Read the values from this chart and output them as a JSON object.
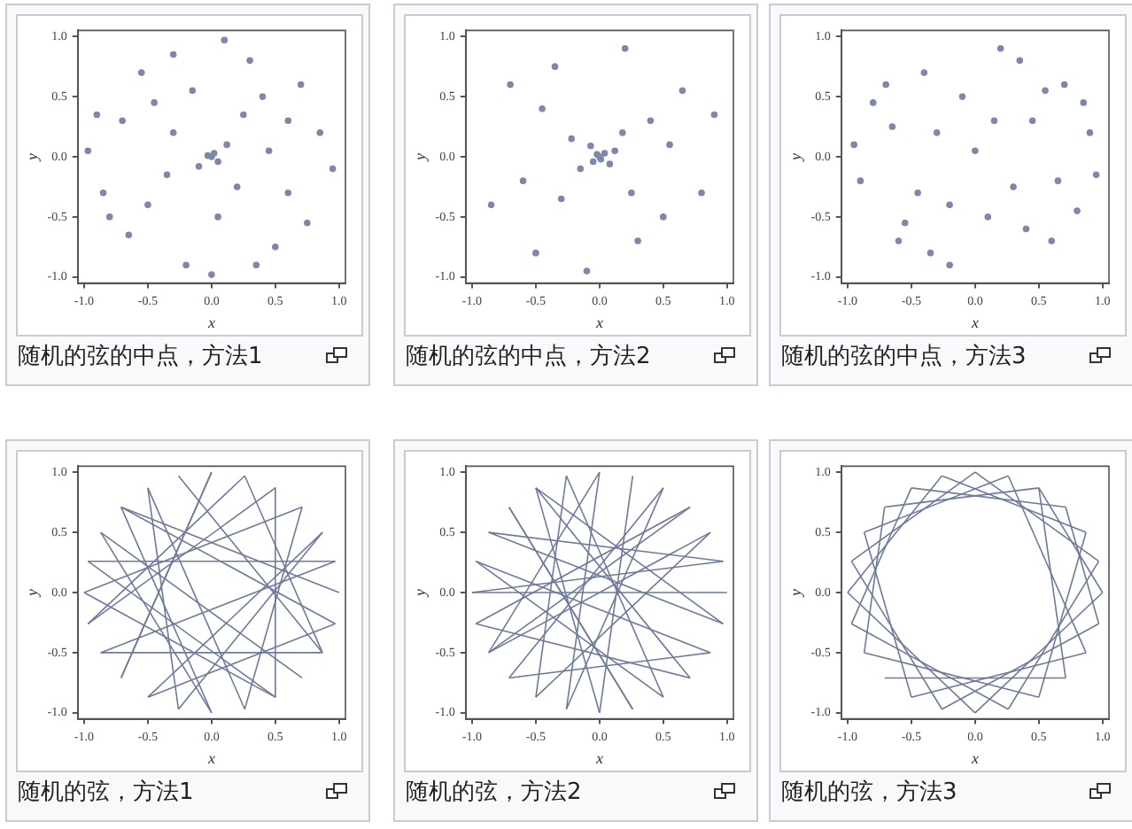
{
  "chart_data": [
    {
      "type": "scatter",
      "title": "随机的弦的中点，方法1",
      "xlabel": "x",
      "ylabel": "y",
      "color": "#7d88a8",
      "marker": "circle",
      "grid": false,
      "legend": false,
      "xlim": [
        -1.05,
        1.05
      ],
      "ylim": [
        -1.05,
        1.05
      ],
      "xticks": [
        {
          "value": -1,
          "label": "-1.0"
        },
        {
          "value": -0.5,
          "label": "-0.5"
        },
        {
          "value": 0,
          "label": "0.0"
        },
        {
          "value": 0.5,
          "label": "0.5"
        },
        {
          "value": 1,
          "label": "1.0"
        }
      ],
      "yticks": [
        {
          "value": -1,
          "label": "-1.0"
        },
        {
          "value": -0.5,
          "label": "-0.5"
        },
        {
          "value": 0,
          "label": "0.0"
        },
        {
          "value": 0.5,
          "label": "0.5"
        },
        {
          "value": 1,
          "label": "1.0"
        }
      ],
      "x": [
        0,
        0.02,
        -0.03,
        0.05,
        -0.1,
        0.12,
        0.2,
        -0.3,
        0.4,
        -0.5,
        0.6,
        -0.7,
        0.3,
        -0.2,
        0.85,
        -0.85,
        0.5,
        -0.55,
        0.7,
        -0.65,
        0.95,
        -0.97,
        0.1,
        0,
        0.25,
        -0.35,
        0.45,
        -0.15,
        0.05,
        -0.45,
        0.75,
        -0.8,
        0.6,
        -0.3,
        0.35,
        -0.9
      ],
      "values": [
        0,
        0.03,
        0.01,
        -0.04,
        -0.08,
        0.1,
        -0.25,
        0.2,
        0.5,
        -0.4,
        -0.3,
        0.3,
        0.8,
        -0.9,
        0.2,
        -0.3,
        -0.75,
        0.7,
        0.6,
        -0.65,
        -0.1,
        0.05,
        0.97,
        -0.98,
        0.35,
        -0.15,
        0.05,
        0.55,
        -0.5,
        0.45,
        -0.55,
        -0.5,
        0.3,
        0.85,
        -0.9,
        0.35
      ]
    },
    {
      "type": "scatter",
      "title": "随机的弦的中点，方法2",
      "xlabel": "x",
      "ylabel": "y",
      "color": "#7d88a8",
      "marker": "circle",
      "grid": false,
      "legend": false,
      "xlim": [
        -1.05,
        1.05
      ],
      "ylim": [
        -1.05,
        1.05
      ],
      "xticks": [
        {
          "value": -1,
          "label": "-1.0"
        },
        {
          "value": -0.5,
          "label": "-0.5"
        },
        {
          "value": 0,
          "label": "0.0"
        },
        {
          "value": 0.5,
          "label": "0.5"
        },
        {
          "value": 1,
          "label": "1.0"
        }
      ],
      "yticks": [
        {
          "value": -1,
          "label": "-1.0"
        },
        {
          "value": -0.5,
          "label": "-0.5"
        },
        {
          "value": 0,
          "label": "0.0"
        },
        {
          "value": 0.5,
          "label": "0.5"
        },
        {
          "value": 1,
          "label": "1.0"
        }
      ],
      "x": [
        0,
        0.01,
        -0.02,
        0.04,
        -0.05,
        0.08,
        -0.07,
        0.12,
        -0.15,
        0.18,
        -0.22,
        0.25,
        -0.3,
        0.4,
        -0.45,
        0.5,
        -0.6,
        0.65,
        -0.7,
        0.8,
        -0.85,
        0.2,
        -0.1,
        0.9,
        -0.5,
        0.55,
        -0.35,
        0.3
      ],
      "values": [
        0,
        -0.02,
        0.02,
        0.03,
        -0.04,
        -0.06,
        0.09,
        0.05,
        -0.1,
        0.2,
        0.15,
        -0.3,
        -0.35,
        0.3,
        0.4,
        -0.5,
        -0.2,
        0.55,
        0.6,
        -0.3,
        -0.4,
        0.9,
        -0.95,
        0.35,
        -0.8,
        0.1,
        0.75,
        -0.7
      ]
    },
    {
      "type": "scatter",
      "title": "随机的弦的中点，方法3",
      "xlabel": "x",
      "ylabel": "y",
      "color": "#7d88a8",
      "marker": "circle",
      "grid": false,
      "legend": false,
      "xlim": [
        -1.05,
        1.05
      ],
      "ylim": [
        -1.05,
        1.05
      ],
      "xticks": [
        {
          "value": -1,
          "label": "-1.0"
        },
        {
          "value": -0.5,
          "label": "-0.5"
        },
        {
          "value": 0,
          "label": "0.0"
        },
        {
          "value": 0.5,
          "label": "0.5"
        },
        {
          "value": 1,
          "label": "1.0"
        }
      ],
      "yticks": [
        {
          "value": -1,
          "label": "-1.0"
        },
        {
          "value": -0.5,
          "label": "-0.5"
        },
        {
          "value": 0,
          "label": "0.0"
        },
        {
          "value": 0.5,
          "label": "0.5"
        },
        {
          "value": 1,
          "label": "1.0"
        }
      ],
      "x": [
        0.7,
        -0.7,
        0.6,
        -0.6,
        0.9,
        -0.9,
        0.2,
        -0.2,
        0.45,
        -0.45,
        0.1,
        -0.1,
        0.8,
        -0.8,
        0.35,
        -0.35,
        0,
        0.3,
        -0.3,
        0.95,
        -0.95,
        0.55,
        -0.55,
        0.65,
        -0.65,
        0.15,
        -0.2,
        0.4,
        -0.4,
        0.85
      ],
      "values": [
        0.6,
        0.6,
        -0.7,
        -0.7,
        0.2,
        -0.2,
        0.9,
        -0.9,
        0.3,
        -0.3,
        -0.5,
        0.5,
        -0.45,
        0.45,
        0.8,
        -0.8,
        0.05,
        -0.25,
        0.2,
        -0.15,
        0.1,
        0.55,
        -0.55,
        -0.2,
        0.25,
        0.3,
        -0.4,
        -0.6,
        0.7,
        0.45
      ]
    },
    {
      "type": "line",
      "title": "随机的弦，方法1",
      "xlabel": "x",
      "ylabel": "y",
      "color": "#6d7a99",
      "marker": "none",
      "line_style": "solid",
      "grid": false,
      "legend": false,
      "xlim": [
        -1.05,
        1.05
      ],
      "ylim": [
        -1.05,
        1.05
      ],
      "xticks": [
        {
          "value": -1,
          "label": "-1.0"
        },
        {
          "value": -0.5,
          "label": "-0.5"
        },
        {
          "value": 0,
          "label": "0.0"
        },
        {
          "value": 0.5,
          "label": "0.5"
        },
        {
          "value": 1,
          "label": "1.0"
        }
      ],
      "yticks": [
        {
          "value": -1,
          "label": "-1.0"
        },
        {
          "value": -0.5,
          "label": "-0.5"
        },
        {
          "value": 0,
          "label": "0.0"
        },
        {
          "value": 0.5,
          "label": "0.5"
        },
        {
          "value": 1,
          "label": "1.0"
        }
      ],
      "series": [
        {
          "x": [
            1,
            -0.71
          ],
          "values": [
            0,
            0.71
          ]
        },
        {
          "x": [
            0.97,
            -0.87
          ],
          "values": [
            0.26,
            -0.5
          ]
        },
        {
          "x": [
            0.87,
            -0.26
          ],
          "values": [
            0.5,
            -0.97
          ]
        },
        {
          "x": [
            0.71,
            -1
          ],
          "values": [
            0.71,
            0
          ]
        },
        {
          "x": [
            0.5,
            0.5
          ],
          "values": [
            0.87,
            -0.87
          ]
        },
        {
          "x": [
            0.26,
            -0.97
          ],
          "values": [
            0.97,
            -0.26
          ]
        },
        {
          "x": [
            0,
            -0.71
          ],
          "values": [
            1,
            -0.71
          ]
        },
        {
          "x": [
            -0.26,
            0.87
          ],
          "values": [
            0.97,
            -0.5
          ]
        },
        {
          "x": [
            -0.5,
            0.26
          ],
          "values": [
            0.87,
            -0.97
          ]
        },
        {
          "x": [
            -0.71,
            0.97
          ],
          "values": [
            0.71,
            -0.26
          ]
        },
        {
          "x": [
            -0.87,
            0
          ],
          "values": [
            0.5,
            -1
          ]
        },
        {
          "x": [
            -0.97,
            0.97
          ],
          "values": [
            0.26,
            0.26
          ]
        },
        {
          "x": [
            -1,
            0.5
          ],
          "values": [
            0,
            -0.87
          ]
        },
        {
          "x": [
            -0.97,
            0.5
          ],
          "values": [
            -0.26,
            0.87
          ]
        },
        {
          "x": [
            -0.87,
            0.87
          ],
          "values": [
            -0.5,
            -0.5
          ]
        },
        {
          "x": [
            -0.71,
            0
          ],
          "values": [
            -0.71,
            1
          ]
        },
        {
          "x": [
            -0.5,
            0.87
          ],
          "values": [
            -0.87,
            0.5
          ]
        },
        {
          "x": [
            -0.26,
            -0.5
          ],
          "values": [
            -0.97,
            0.87
          ]
        },
        {
          "x": [
            0,
            -0.71
          ],
          "values": [
            -1,
            0.71
          ]
        },
        {
          "x": [
            0.26,
            0.71
          ],
          "values": [
            -0.97,
            0.71
          ]
        },
        {
          "x": [
            0.5,
            -0.97
          ],
          "values": [
            -0.87,
            0.26
          ]
        },
        {
          "x": [
            0.71,
            -0.87
          ],
          "values": [
            -0.71,
            0.5
          ]
        },
        {
          "x": [
            0.87,
            0.26
          ],
          "values": [
            -0.5,
            0.97
          ]
        },
        {
          "x": [
            0.97,
            -0.5
          ],
          "values": [
            -0.26,
            -0.87
          ]
        }
      ]
    },
    {
      "type": "line",
      "title": "随机的弦，方法2",
      "xlabel": "x",
      "ylabel": "y",
      "color": "#6d7a99",
      "marker": "none",
      "line_style": "solid",
      "grid": false,
      "legend": false,
      "xlim": [
        -1.05,
        1.05
      ],
      "ylim": [
        -1.05,
        1.05
      ],
      "xticks": [
        {
          "value": -1,
          "label": "-1.0"
        },
        {
          "value": -0.5,
          "label": "-0.5"
        },
        {
          "value": 0,
          "label": "0.0"
        },
        {
          "value": 0.5,
          "label": "0.5"
        },
        {
          "value": 1,
          "label": "1.0"
        }
      ],
      "yticks": [
        {
          "value": -1,
          "label": "-1.0"
        },
        {
          "value": -0.5,
          "label": "-0.5"
        },
        {
          "value": 0,
          "label": "0.0"
        },
        {
          "value": 0.5,
          "label": "0.5"
        },
        {
          "value": 1,
          "label": "1.0"
        }
      ],
      "series": [
        {
          "x": [
            1,
            -1
          ],
          "values": [
            0,
            0
          ]
        },
        {
          "x": [
            0.97,
            -0.87
          ],
          "values": [
            0.26,
            0.5
          ]
        },
        {
          "x": [
            0.87,
            -0.5
          ],
          "values": [
            0.5,
            -0.87
          ]
        },
        {
          "x": [
            0.71,
            -0.87
          ],
          "values": [
            0.71,
            -0.5
          ]
        },
        {
          "x": [
            0.5,
            -0.26
          ],
          "values": [
            0.87,
            -0.97
          ]
        },
        {
          "x": [
            0.26,
            0
          ],
          "values": [
            0.97,
            -1
          ]
        },
        {
          "x": [
            0,
            -0.87
          ],
          "values": [
            1,
            -0.5
          ]
        },
        {
          "x": [
            -0.26,
            0.5
          ],
          "values": [
            0.97,
            -0.87
          ]
        },
        {
          "x": [
            -0.5,
            0.71
          ],
          "values": [
            0.87,
            -0.71
          ]
        },
        {
          "x": [
            -0.71,
            0.26
          ],
          "values": [
            0.71,
            -0.97
          ]
        },
        {
          "x": [
            -0.87,
            0.97
          ],
          "values": [
            0.5,
            -0.26
          ]
        },
        {
          "x": [
            -0.97,
            0.87
          ],
          "values": [
            0.26,
            -0.5
          ]
        },
        {
          "x": [
            -1,
            0.97
          ],
          "values": [
            0,
            0.26
          ]
        },
        {
          "x": [
            -0.97,
            0.71
          ],
          "values": [
            -0.26,
            0.71
          ]
        },
        {
          "x": [
            -0.87,
            0.87
          ],
          "values": [
            -0.5,
            0.5
          ]
        },
        {
          "x": [
            -0.71,
            0.5
          ],
          "values": [
            -0.71,
            0.87
          ]
        },
        {
          "x": [
            -0.5,
            -0.26
          ],
          "values": [
            -0.87,
            0.97
          ]
        },
        {
          "x": [
            -0.26,
            0
          ],
          "values": [
            -0.97,
            1
          ]
        },
        {
          "x": [
            0,
            -0.5
          ],
          "values": [
            -1,
            0.87
          ]
        },
        {
          "x": [
            0.26,
            -0.71
          ],
          "values": [
            -0.97,
            0.71
          ]
        },
        {
          "x": [
            0.5,
            -0.97
          ],
          "values": [
            -0.87,
            0.26
          ]
        },
        {
          "x": [
            0.71,
            -0.97
          ],
          "values": [
            -0.71,
            -0.26
          ]
        },
        {
          "x": [
            0.87,
            -0.71
          ],
          "values": [
            -0.5,
            -0.71
          ]
        },
        {
          "x": [
            0.97,
            -0.5
          ],
          "values": [
            -0.26,
            0.87
          ]
        }
      ]
    },
    {
      "type": "line",
      "title": "随机的弦，方法3",
      "xlabel": "x",
      "ylabel": "y",
      "color": "#6d7a99",
      "marker": "none",
      "line_style": "solid",
      "grid": false,
      "legend": false,
      "xlim": [
        -1.05,
        1.05
      ],
      "ylim": [
        -1.05,
        1.05
      ],
      "xticks": [
        {
          "value": -1,
          "label": "-1.0"
        },
        {
          "value": -0.5,
          "label": "-0.5"
        },
        {
          "value": 0,
          "label": "0.0"
        },
        {
          "value": 0.5,
          "label": "0.5"
        },
        {
          "value": 1,
          "label": "1.0"
        }
      ],
      "yticks": [
        {
          "value": -1,
          "label": "-1.0"
        },
        {
          "value": -0.5,
          "label": "-0.5"
        },
        {
          "value": 0,
          "label": "0.0"
        },
        {
          "value": 0.5,
          "label": "0.5"
        },
        {
          "value": 1,
          "label": "1.0"
        }
      ],
      "series": [
        {
          "x": [
            1,
            0.5
          ],
          "values": [
            0,
            0.87
          ]
        },
        {
          "x": [
            0.97,
            0
          ],
          "values": [
            0.26,
            1
          ]
        },
        {
          "x": [
            0.87,
            -0.26
          ],
          "values": [
            0.5,
            0.97
          ]
        },
        {
          "x": [
            0.71,
            -0.5
          ],
          "values": [
            0.71,
            0.87
          ]
        },
        {
          "x": [
            0.5,
            -0.71
          ],
          "values": [
            0.87,
            0.71
          ]
        },
        {
          "x": [
            0.26,
            -0.87
          ],
          "values": [
            0.97,
            0.5
          ]
        },
        {
          "x": [
            0,
            -0.97
          ],
          "values": [
            1,
            0.26
          ]
        },
        {
          "x": [
            -0.26,
            -1
          ],
          "values": [
            0.97,
            0
          ]
        },
        {
          "x": [
            -0.5,
            -0.97
          ],
          "values": [
            0.87,
            -0.26
          ]
        },
        {
          "x": [
            -0.71,
            -0.87
          ],
          "values": [
            0.71,
            -0.5
          ]
        },
        {
          "x": [
            -0.87,
            -0.5
          ],
          "values": [
            0.5,
            -0.87
          ]
        },
        {
          "x": [
            -0.97,
            -0.26
          ],
          "values": [
            0.26,
            -0.97
          ]
        },
        {
          "x": [
            -1,
            0
          ],
          "values": [
            0,
            -1
          ]
        },
        {
          "x": [
            -0.97,
            0.26
          ],
          "values": [
            -0.26,
            -0.97
          ]
        },
        {
          "x": [
            -0.87,
            0.5
          ],
          "values": [
            -0.5,
            -0.87
          ]
        },
        {
          "x": [
            -0.71,
            0.71
          ],
          "values": [
            -0.71,
            -0.71
          ]
        },
        {
          "x": [
            -0.5,
            0.87
          ],
          "values": [
            -0.87,
            -0.5
          ]
        },
        {
          "x": [
            -0.26,
            0.97
          ],
          "values": [
            -0.97,
            -0.26
          ]
        },
        {
          "x": [
            0,
            1
          ],
          "values": [
            -1,
            0
          ]
        },
        {
          "x": [
            0.26,
            0.97
          ],
          "values": [
            -0.97,
            0.26
          ]
        },
        {
          "x": [
            0.5,
            0.87
          ],
          "values": [
            -0.87,
            0.5
          ]
        },
        {
          "x": [
            0.71,
            0.5
          ],
          "values": [
            -0.71,
            0.87
          ]
        },
        {
          "x": [
            0.87,
            0.26
          ],
          "values": [
            -0.5,
            0.97
          ]
        },
        {
          "x": [
            0.97,
            0.71
          ],
          "values": [
            -0.26,
            0.71
          ]
        }
      ]
    }
  ]
}
